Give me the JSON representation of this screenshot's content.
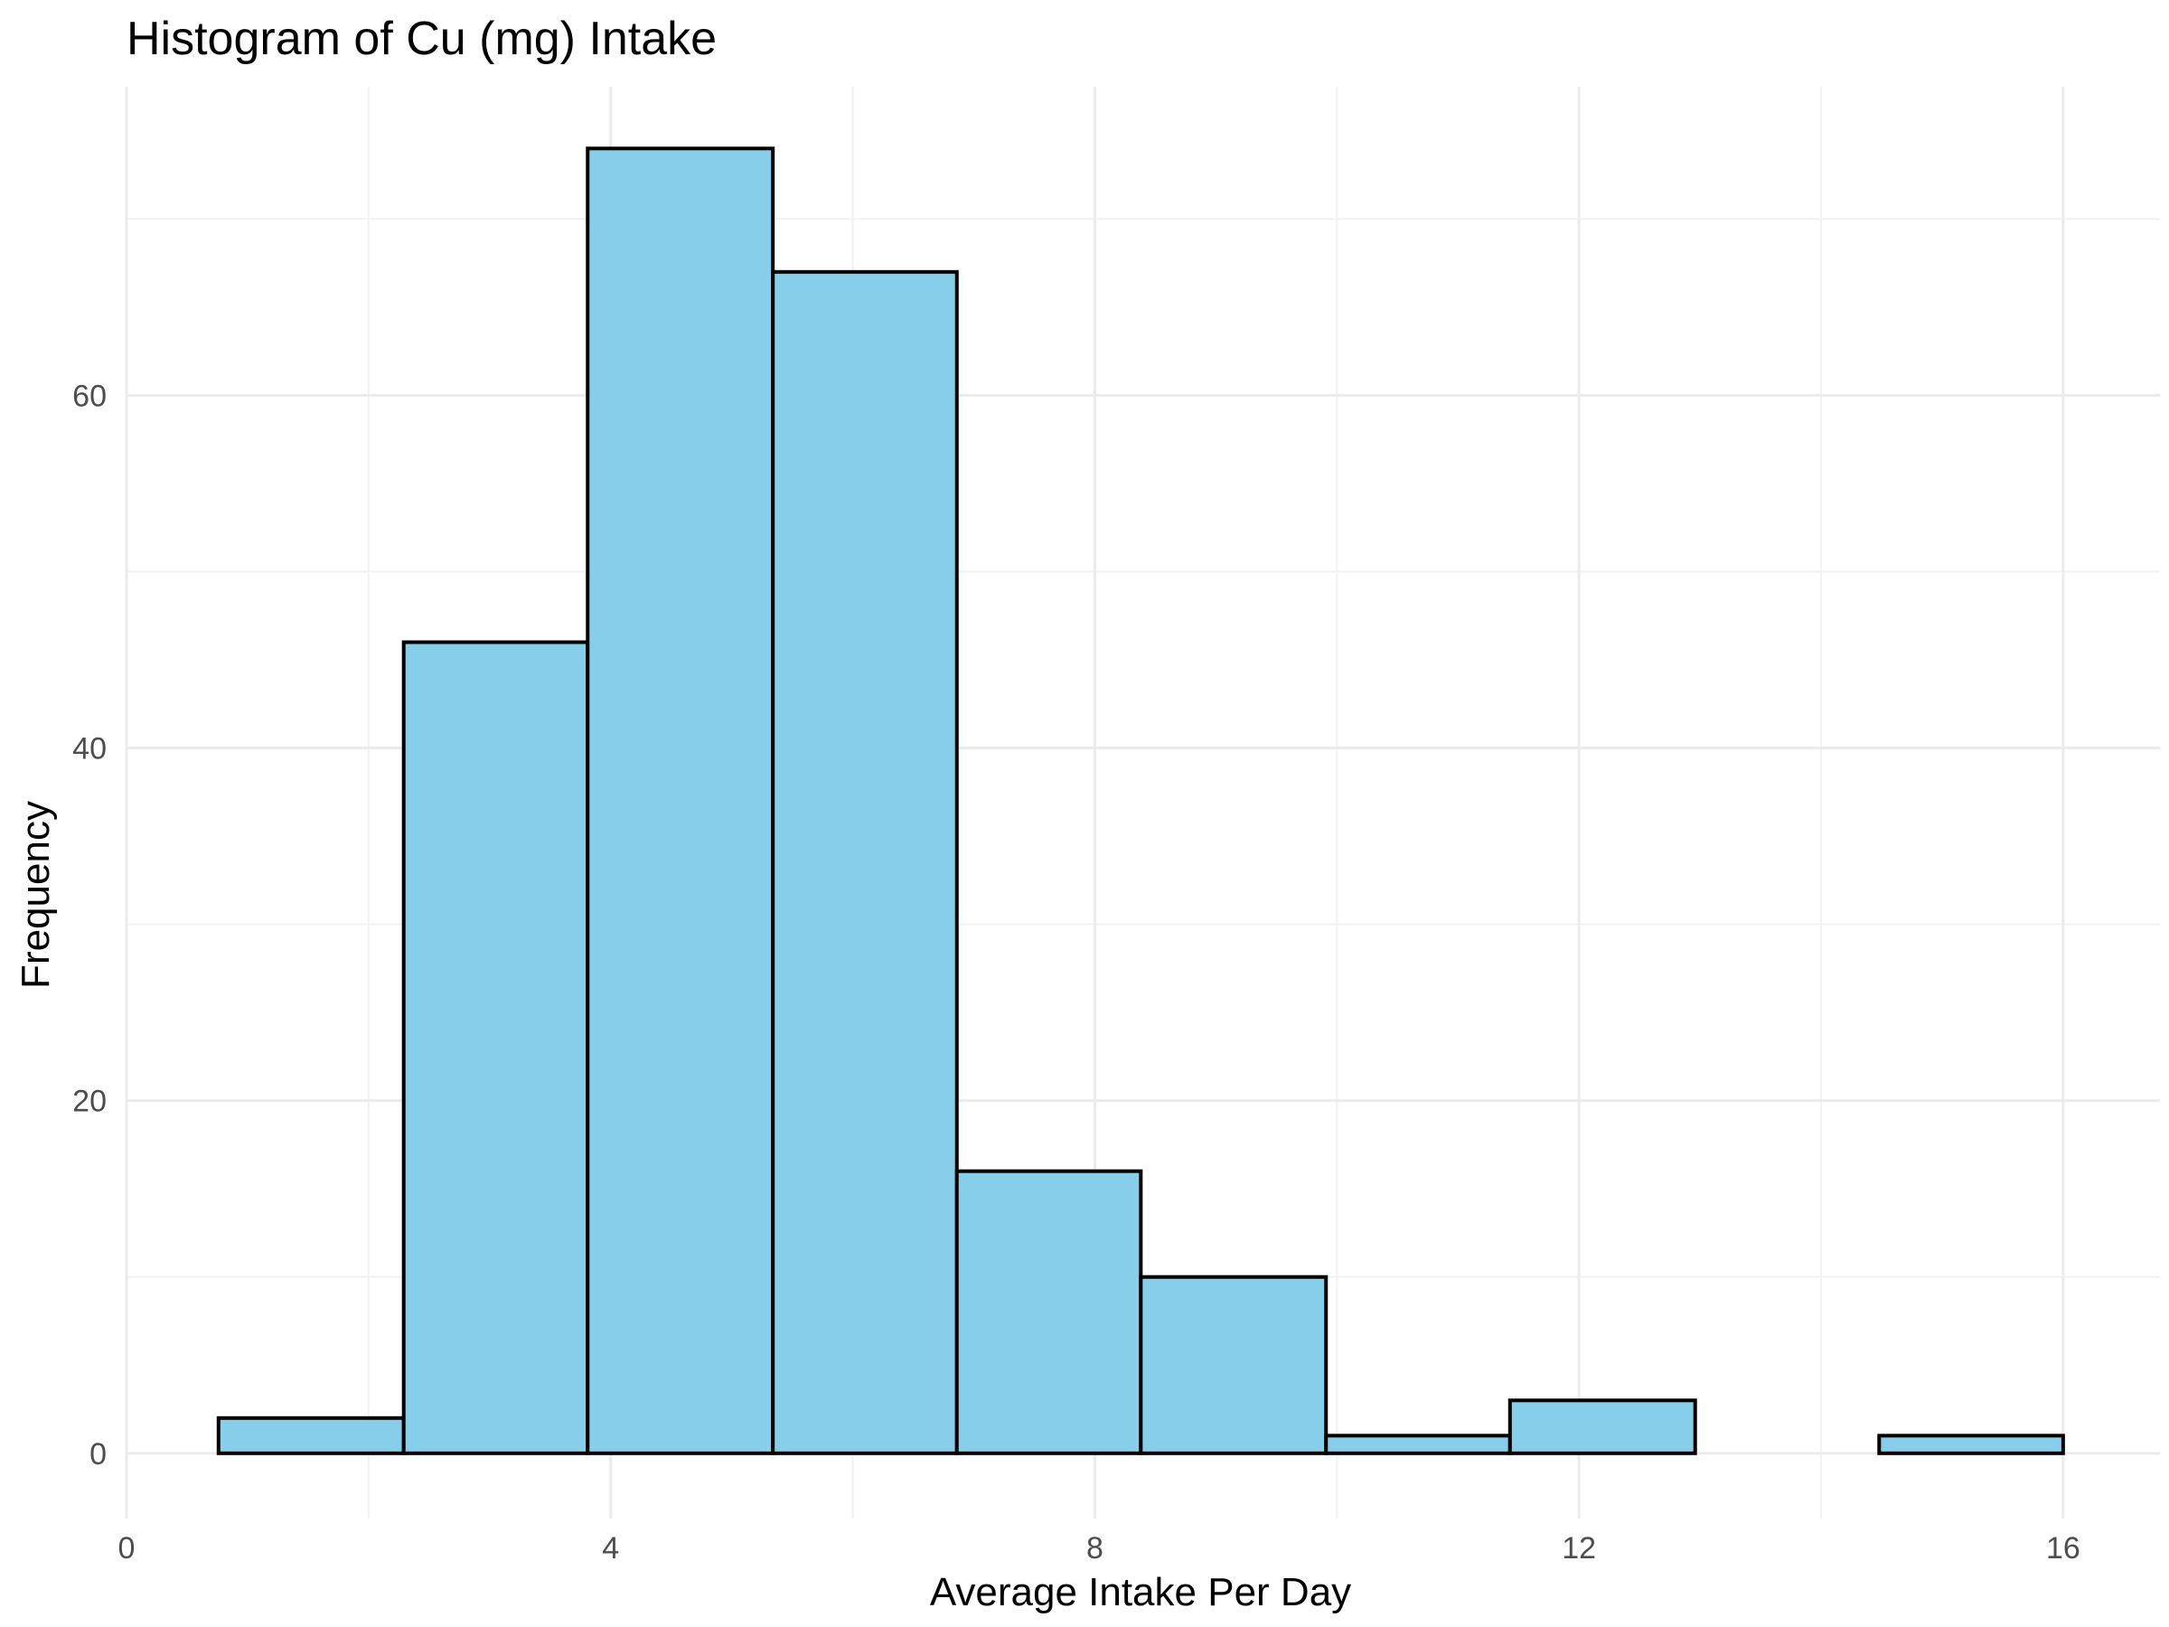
{
  "chart_data": {
    "type": "bar",
    "subtype": "histogram",
    "title": "Histogram of Cu (mg) Intake",
    "xlabel": "Average Intake Per Day",
    "ylabel": "Frequency",
    "xlim": [
      0,
      16.8
    ],
    "ylim": [
      -3.7,
      77.5
    ],
    "x_ticks": [
      0,
      4,
      8,
      12,
      16
    ],
    "y_ticks": [
      0,
      20,
      40,
      60
    ],
    "grid": true,
    "fill_color": "#87CEEB",
    "edge_color": "#000000",
    "bins": [
      {
        "x0": 0.76,
        "x1": 2.29,
        "count": 2
      },
      {
        "x0": 2.29,
        "x1": 3.81,
        "count": 46
      },
      {
        "x0": 3.81,
        "x1": 5.34,
        "count": 74
      },
      {
        "x0": 5.34,
        "x1": 6.86,
        "count": 67
      },
      {
        "x0": 6.86,
        "x1": 8.38,
        "count": 16
      },
      {
        "x0": 8.38,
        "x1": 9.91,
        "count": 10
      },
      {
        "x0": 9.91,
        "x1": 11.43,
        "count": 1
      },
      {
        "x0": 11.43,
        "x1": 12.96,
        "count": 3
      },
      {
        "x0": 12.96,
        "x1": 14.48,
        "count": 0
      },
      {
        "x0": 14.48,
        "x1": 16.0,
        "count": 1
      }
    ]
  }
}
